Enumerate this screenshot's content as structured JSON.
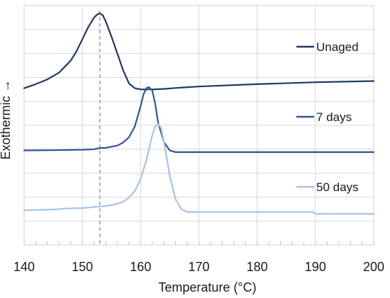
{
  "chart_data": {
    "type": "line",
    "xlabel": "Temperature (°C)",
    "ylabel": "Exothermic →",
    "xlim": [
      140,
      200
    ],
    "xticks": [
      140,
      150,
      160,
      170,
      180,
      190,
      200
    ],
    "ylim": [
      0,
      10
    ],
    "grid": "both",
    "reference_line": {
      "x": 153,
      "style": "dashed",
      "color": "#8c8c8c"
    },
    "series": [
      {
        "name": "Unaged",
        "color": "#203864",
        "x": [
          140,
          142,
          144,
          146,
          148,
          149,
          150,
          151,
          152,
          152.5,
          153,
          153.5,
          154,
          155,
          156,
          157,
          158,
          159,
          160,
          162,
          164,
          166,
          170,
          180,
          190,
          200
        ],
        "y": [
          6.55,
          6.72,
          6.92,
          7.2,
          7.7,
          8.1,
          8.6,
          9.1,
          9.5,
          9.62,
          9.68,
          9.6,
          9.35,
          8.7,
          8.0,
          7.3,
          6.75,
          6.55,
          6.5,
          6.5,
          6.52,
          6.56,
          6.62,
          6.72,
          6.8,
          6.85
        ]
      },
      {
        "name": "7 days",
        "color": "#2f5597",
        "x": [
          140,
          145,
          150,
          152,
          153,
          154,
          156,
          157,
          158,
          159,
          160,
          160.5,
          161,
          161.4,
          162,
          162.5,
          163,
          164,
          165,
          166,
          170,
          180,
          190,
          200
        ],
        "y": [
          3.95,
          3.96,
          3.98,
          4.0,
          4.05,
          4.06,
          4.15,
          4.28,
          4.5,
          4.95,
          5.8,
          6.3,
          6.55,
          6.6,
          6.45,
          5.9,
          5.1,
          4.3,
          3.95,
          3.88,
          3.88,
          3.88,
          3.88,
          3.88
        ]
      },
      {
        "name": "50 days",
        "color": "#a9c4e8",
        "x": [
          140,
          145,
          147,
          150,
          153,
          155,
          157,
          158,
          159,
          160,
          161,
          162,
          162.5,
          163,
          163.5,
          164,
          165,
          166,
          167,
          168,
          170,
          180,
          189.5,
          190,
          195,
          200
        ],
        "y": [
          1.45,
          1.48,
          1.52,
          1.54,
          1.6,
          1.66,
          1.8,
          1.98,
          2.25,
          2.75,
          3.55,
          4.6,
          4.95,
          5.05,
          4.9,
          4.3,
          2.9,
          1.9,
          1.5,
          1.38,
          1.38,
          1.38,
          1.38,
          1.3,
          1.3,
          1.3
        ]
      }
    ],
    "legend": "right"
  }
}
